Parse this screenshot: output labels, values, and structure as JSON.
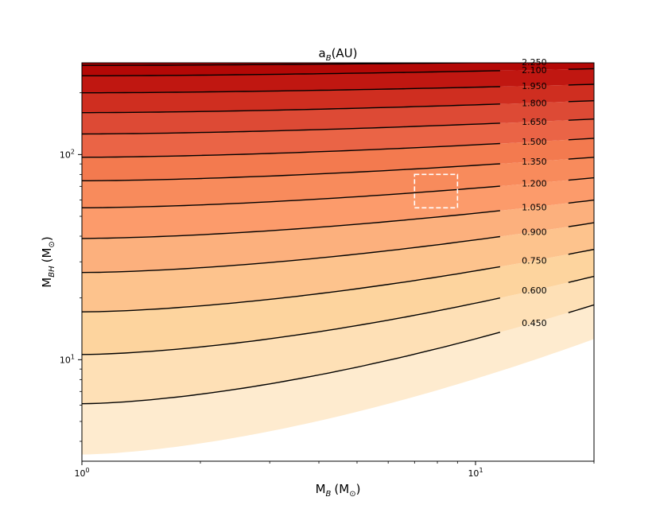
{
  "chart_data": {
    "type": "contour",
    "title_base": "a",
    "title_sub": "B",
    "title_rest": "(AU)",
    "xlabel_base": "M",
    "xlabel_sub": "B",
    "xlabel_unit": "(M",
    "xlabel_close": ")",
    "ylabel_base": "M",
    "ylabel_sub": "BH",
    "ylabel_unit": "(M",
    "ylabel_close": ")",
    "sun_symbol": "⊙",
    "x_scale": "log",
    "y_scale": "log",
    "xlim": [
      1,
      20
    ],
    "ylim": [
      3.2,
      280
    ],
    "x_ticks": [
      {
        "value": 1,
        "base": "10",
        "exp": "0"
      },
      {
        "value": 10,
        "base": "10",
        "exp": "1"
      }
    ],
    "y_ticks": [
      {
        "value": 10,
        "base": "10",
        "exp": "1"
      },
      {
        "value": 100,
        "base": "10",
        "exp": "2"
      }
    ],
    "colormap": "OrRd",
    "contour_levels": [
      {
        "label": "",
        "value": 0.3,
        "y_at_xmin": 3.45,
        "y_at_xmax": 12.6
      },
      {
        "label": "0.450",
        "value": 0.45,
        "y_at_xmin": 6.1,
        "y_at_xmax": 18.5
      },
      {
        "label": "0.600",
        "value": 0.6,
        "y_at_xmin": 10.6,
        "y_at_xmax": 25.5
      },
      {
        "label": "0.750",
        "value": 0.75,
        "y_at_xmin": 17.1,
        "y_at_xmax": 34.5
      },
      {
        "label": "0.900",
        "value": 0.9,
        "y_at_xmin": 26.6,
        "y_at_xmax": 46.5
      },
      {
        "label": "1.050",
        "value": 1.05,
        "y_at_xmin": 39.0,
        "y_at_xmax": 60.0
      },
      {
        "label": "1.200",
        "value": 1.2,
        "y_at_xmin": 55.0,
        "y_at_xmax": 77.0
      },
      {
        "label": "1.350",
        "value": 1.35,
        "y_at_xmin": 74.5,
        "y_at_xmax": 97.0
      },
      {
        "label": "1.500",
        "value": 1.5,
        "y_at_xmin": 97.0,
        "y_at_xmax": 120.0
      },
      {
        "label": "1.650",
        "value": 1.65,
        "y_at_xmin": 126.0,
        "y_at_xmax": 149.0
      },
      {
        "label": "1.800",
        "value": 1.8,
        "y_at_xmin": 160.0,
        "y_at_xmax": 183.0
      },
      {
        "label": "1.950",
        "value": 1.95,
        "y_at_xmin": 200.0,
        "y_at_xmax": 220.0
      },
      {
        "label": "2.100",
        "value": 2.1,
        "y_at_xmin": 242.0,
        "y_at_xmax": 262.0
      },
      {
        "label": "2.250",
        "value": 2.25,
        "y_at_xmin": 272.0,
        "y_at_xmax": 285.0
      }
    ],
    "fill_colors": [
      "#fff7ec",
      "#feebcf",
      "#fee0b6",
      "#fdd49e",
      "#fdc38d",
      "#fcb07d",
      "#fc9b6b",
      "#f88b5c",
      "#f37a4f",
      "#ea6446",
      "#dd4a35",
      "#cf2e20",
      "#c01711",
      "#b40806",
      "#a80202"
    ],
    "region_box": {
      "x_range": [
        7.0,
        9.0
      ],
      "y_range": [
        55,
        80
      ],
      "style": "dashed",
      "color": "#ffffff"
    }
  }
}
